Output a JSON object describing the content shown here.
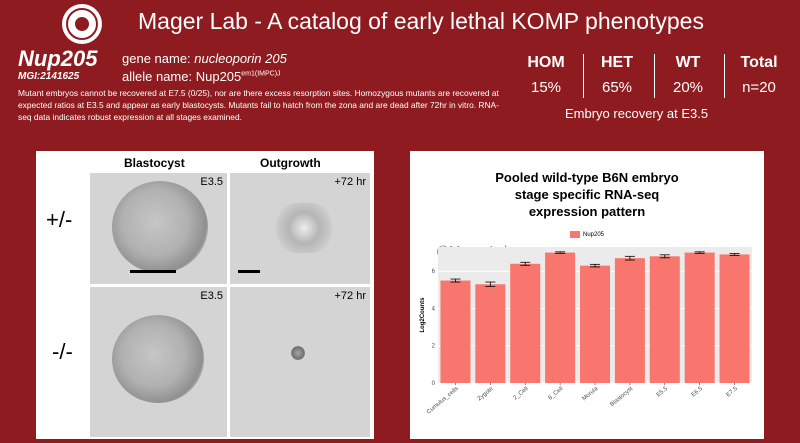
{
  "header": {
    "title": "Mager Lab - A catalog of early lethal KOMP phenotypes",
    "logo_icon": "university-seal-icon"
  },
  "gene": {
    "symbol": "Nup205",
    "mgi": "MGI:2141625",
    "name_label": "gene name: ",
    "name_value": "nucleoporin 205",
    "allele_label": "allele name: ",
    "allele_base": "Nup205",
    "allele_sup": "em1(IMPC)J",
    "description": "Mutant embryos cannot be recovered at E7.5 (0/25), nor are there excess resorption sites. Homozygous mutants are recovered at expected ratios at E3.5 and appear as early blastocysts. Mutants fail to hatch from the zona and are dead after 72hr in vitro. RNA-seq data indicates robust expression at all stages examined."
  },
  "stats": {
    "columns": [
      {
        "head": "HOM",
        "value": "15%"
      },
      {
        "head": "HET",
        "value": "65%"
      },
      {
        "head": "WT",
        "value": "20%"
      },
      {
        "head": "Total",
        "value": "n=20"
      }
    ],
    "caption": "Embryo recovery at E3.5"
  },
  "images": {
    "col_blastocyst": "Blastocyst",
    "col_outgrowth": "Outgrowth",
    "row_het": "+/-",
    "row_hom": "-/-",
    "stage_e35": "E3.5",
    "stage_72": "+72 hr"
  },
  "chart_data": {
    "type": "bar",
    "title_lines": [
      "Pooled wild-type B6N embryo",
      "stage specific RNA-seq",
      "expression pattern"
    ],
    "watermark": "@Mager Lab",
    "legend": [
      "Nup205"
    ],
    "ylabel": "Log2Counts",
    "ylim": [
      0,
      7.3
    ],
    "yticks": [
      0,
      2,
      4,
      6
    ],
    "categories": [
      "Cumulus_cells",
      "Zygote",
      "2_Cell",
      "8_Cell",
      "Morula",
      "Blastocyst",
      "E5.5",
      "E6.5",
      "E7.5"
    ],
    "values": [
      5.5,
      5.3,
      6.4,
      7.0,
      6.3,
      6.7,
      6.8,
      7.0,
      6.9
    ],
    "errors": [
      0.08,
      0.12,
      0.08,
      0.04,
      0.07,
      0.1,
      0.08,
      0.04,
      0.05
    ],
    "bar_color": "#f8766d"
  }
}
